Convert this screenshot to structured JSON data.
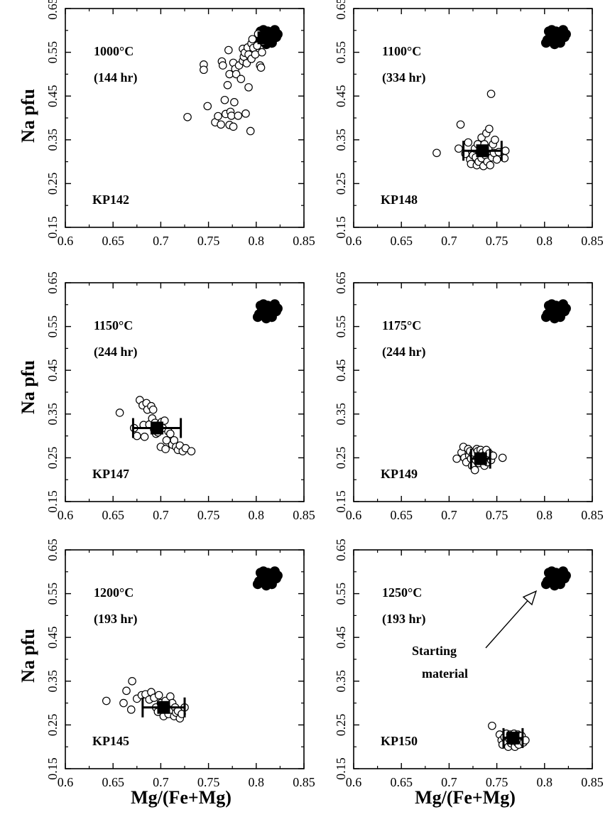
{
  "figure": {
    "ylabel": "Na pfu",
    "xlabel": "Mg/(Fe+Mg)"
  },
  "chart_data": [
    {
      "type": "scatter",
      "temperature": "1000°C",
      "duration": "(144 hr)",
      "sample": "KP142",
      "xlim": [
        0.6,
        0.85
      ],
      "ylim": [
        0.15,
        0.65
      ],
      "x_ticks": [
        "0.6",
        "0.65",
        "0.7",
        "0.75",
        "0.8",
        "0.85"
      ],
      "y_ticks": [
        "0.15",
        "0.25",
        "0.35",
        "0.45",
        "0.55",
        "0.65"
      ],
      "starting_material": {
        "x": 0.812,
        "y": 0.588
      },
      "mean": {
        "x": 0.808,
        "y": 0.583,
        "xerr": 0.0
      },
      "points": [
        [
          0.728,
          0.402
        ],
        [
          0.745,
          0.522
        ],
        [
          0.745,
          0.51
        ],
        [
          0.749,
          0.427
        ],
        [
          0.757,
          0.39
        ],
        [
          0.76,
          0.404
        ],
        [
          0.763,
          0.385
        ],
        [
          0.764,
          0.529
        ],
        [
          0.765,
          0.52
        ],
        [
          0.767,
          0.441
        ],
        [
          0.768,
          0.409
        ],
        [
          0.77,
          0.475
        ],
        [
          0.771,
          0.555
        ],
        [
          0.772,
          0.5
        ],
        [
          0.772,
          0.384
        ],
        [
          0.773,
          0.414
        ],
        [
          0.774,
          0.405
        ],
        [
          0.776,
          0.38
        ],
        [
          0.776,
          0.526
        ],
        [
          0.777,
          0.436
        ],
        [
          0.778,
          0.512
        ],
        [
          0.779,
          0.5
        ],
        [
          0.781,
          0.405
        ],
        [
          0.782,
          0.52
        ],
        [
          0.784,
          0.489
        ],
        [
          0.786,
          0.53
        ],
        [
          0.786,
          0.558
        ],
        [
          0.787,
          0.54
        ],
        [
          0.788,
          0.549
        ],
        [
          0.789,
          0.41
        ],
        [
          0.79,
          0.525
        ],
        [
          0.791,
          0.561
        ],
        [
          0.792,
          0.545
        ],
        [
          0.792,
          0.47
        ],
        [
          0.794,
          0.37
        ],
        [
          0.795,
          0.57
        ],
        [
          0.795,
          0.535
        ],
        [
          0.796,
          0.58
        ],
        [
          0.797,
          0.56
        ],
        [
          0.799,
          0.545
        ],
        [
          0.801,
          0.565
        ],
        [
          0.802,
          0.592
        ],
        [
          0.804,
          0.52
        ],
        [
          0.805,
          0.515
        ],
        [
          0.806,
          0.55
        ],
        [
          0.807,
          0.575
        ],
        [
          0.808,
          0.585
        ]
      ]
    },
    {
      "type": "scatter",
      "temperature": "1100°C",
      "duration": "(334 hr)",
      "sample": "KP148",
      "xlim": [
        0.6,
        0.85
      ],
      "ylim": [
        0.15,
        0.65
      ],
      "x_ticks": [
        "0.6",
        "0.65",
        "0.7",
        "0.75",
        "0.8",
        "0.85"
      ],
      "y_ticks": [
        "0.15",
        "0.25",
        "0.35",
        "0.45",
        "0.55",
        "0.65"
      ],
      "starting_material": {
        "x": 0.812,
        "y": 0.588
      },
      "mean": {
        "x": 0.735,
        "y": 0.325,
        "xerr": 0.02,
        "yerr": 0.02
      },
      "points": [
        [
          0.687,
          0.32
        ],
        [
          0.71,
          0.33
        ],
        [
          0.712,
          0.385
        ],
        [
          0.717,
          0.318
        ],
        [
          0.72,
          0.344
        ],
        [
          0.722,
          0.305
        ],
        [
          0.723,
          0.295
        ],
        [
          0.725,
          0.315
        ],
        [
          0.727,
          0.33
        ],
        [
          0.728,
          0.31
        ],
        [
          0.729,
          0.292
        ],
        [
          0.73,
          0.34
        ],
        [
          0.731,
          0.3
        ],
        [
          0.733,
          0.32
        ],
        [
          0.734,
          0.308
        ],
        [
          0.734,
          0.355
        ],
        [
          0.736,
          0.29
        ],
        [
          0.737,
          0.34
        ],
        [
          0.738,
          0.315
        ],
        [
          0.739,
          0.365
        ],
        [
          0.74,
          0.3
        ],
        [
          0.741,
          0.33
        ],
        [
          0.742,
          0.375
        ],
        [
          0.743,
          0.292
        ],
        [
          0.744,
          0.455
        ],
        [
          0.745,
          0.31
        ],
        [
          0.746,
          0.34
        ],
        [
          0.747,
          0.32
        ],
        [
          0.748,
          0.35
        ],
        [
          0.75,
          0.305
        ],
        [
          0.752,
          0.322
        ],
        [
          0.758,
          0.308
        ],
        [
          0.759,
          0.325
        ]
      ]
    },
    {
      "type": "scatter",
      "temperature": "1150°C",
      "duration": "(244 hr)",
      "sample": "KP147",
      "xlim": [
        0.6,
        0.85
      ],
      "ylim": [
        0.15,
        0.65
      ],
      "x_ticks": [
        "0.6",
        "0.65",
        "0.7",
        "0.75",
        "0.8",
        "0.85"
      ],
      "y_ticks": [
        "0.15",
        "0.25",
        "0.35",
        "0.45",
        "0.55",
        "0.65"
      ],
      "starting_material": {
        "x": 0.812,
        "y": 0.588
      },
      "mean": {
        "x": 0.696,
        "y": 0.318,
        "xerr": 0.025,
        "yerr": 0.02
      },
      "points": [
        [
          0.657,
          0.353
        ],
        [
          0.672,
          0.318
        ],
        [
          0.675,
          0.3
        ],
        [
          0.678,
          0.382
        ],
        [
          0.681,
          0.37
        ],
        [
          0.682,
          0.325
        ],
        [
          0.683,
          0.298
        ],
        [
          0.685,
          0.375
        ],
        [
          0.686,
          0.36
        ],
        [
          0.688,
          0.326
        ],
        [
          0.69,
          0.368
        ],
        [
          0.691,
          0.34
        ],
        [
          0.692,
          0.36
        ],
        [
          0.693,
          0.315
        ],
        [
          0.694,
          0.33
        ],
        [
          0.695,
          0.305
        ],
        [
          0.697,
          0.308
        ],
        [
          0.698,
          0.325
        ],
        [
          0.7,
          0.275
        ],
        [
          0.701,
          0.332
        ],
        [
          0.702,
          0.318
        ],
        [
          0.704,
          0.335
        ],
        [
          0.705,
          0.27
        ],
        [
          0.706,
          0.29
        ],
        [
          0.708,
          0.31
        ],
        [
          0.71,
          0.305
        ],
        [
          0.712,
          0.28
        ],
        [
          0.714,
          0.29
        ],
        [
          0.716,
          0.275
        ],
        [
          0.718,
          0.268
        ],
        [
          0.72,
          0.278
        ],
        [
          0.723,
          0.265
        ],
        [
          0.726,
          0.272
        ],
        [
          0.732,
          0.265
        ]
      ]
    },
    {
      "type": "scatter",
      "temperature": "1175°C",
      "duration": "(244 hr)",
      "sample": "KP149",
      "xlim": [
        0.6,
        0.85
      ],
      "ylim": [
        0.15,
        0.65
      ],
      "x_ticks": [
        "0.6",
        "0.65",
        "0.7",
        "0.75",
        "0.8",
        "0.85"
      ],
      "y_ticks": [
        "0.15",
        "0.25",
        "0.35",
        "0.45",
        "0.55",
        "0.65"
      ],
      "starting_material": {
        "x": 0.812,
        "y": 0.588
      },
      "mean": {
        "x": 0.733,
        "y": 0.248,
        "xerr": 0.01,
        "yerr": 0.025
      },
      "points": [
        [
          0.708,
          0.248
        ],
        [
          0.713,
          0.262
        ],
        [
          0.715,
          0.275
        ],
        [
          0.716,
          0.25
        ],
        [
          0.718,
          0.24
        ],
        [
          0.72,
          0.27
        ],
        [
          0.721,
          0.255
        ],
        [
          0.722,
          0.265
        ],
        [
          0.723,
          0.248
        ],
        [
          0.724,
          0.232
        ],
        [
          0.725,
          0.258
        ],
        [
          0.726,
          0.262
        ],
        [
          0.727,
          0.222
        ],
        [
          0.728,
          0.245
        ],
        [
          0.729,
          0.27
        ],
        [
          0.73,
          0.265
        ],
        [
          0.731,
          0.238
        ],
        [
          0.732,
          0.255
        ],
        [
          0.733,
          0.268
        ],
        [
          0.734,
          0.242
        ],
        [
          0.735,
          0.262
        ],
        [
          0.736,
          0.248
        ],
        [
          0.737,
          0.232
        ],
        [
          0.738,
          0.258
        ],
        [
          0.739,
          0.268
        ],
        [
          0.74,
          0.24
        ],
        [
          0.741,
          0.252
        ],
        [
          0.742,
          0.26
        ],
        [
          0.744,
          0.245
        ],
        [
          0.746,
          0.255
        ],
        [
          0.756,
          0.25
        ]
      ]
    },
    {
      "type": "scatter",
      "temperature": "1200°C",
      "duration": "(193 hr)",
      "sample": "KP145",
      "xlim": [
        0.6,
        0.85
      ],
      "ylim": [
        0.15,
        0.65
      ],
      "x_ticks": [
        "0.6",
        "0.65",
        "0.7",
        "0.75",
        "0.8",
        "0.85"
      ],
      "y_ticks": [
        "0.15",
        "0.25",
        "0.35",
        "0.45",
        "0.55",
        "0.65"
      ],
      "starting_material": {
        "x": 0.812,
        "y": 0.588
      },
      "mean": {
        "x": 0.703,
        "y": 0.29,
        "xerr": 0.022,
        "yerr": 0.022
      },
      "points": [
        [
          0.643,
          0.305
        ],
        [
          0.661,
          0.3
        ],
        [
          0.664,
          0.328
        ],
        [
          0.669,
          0.285
        ],
        [
          0.67,
          0.35
        ],
        [
          0.675,
          0.31
        ],
        [
          0.68,
          0.318
        ],
        [
          0.684,
          0.32
        ],
        [
          0.688,
          0.308
        ],
        [
          0.69,
          0.325
        ],
        [
          0.693,
          0.312
        ],
        [
          0.695,
          0.29
        ],
        [
          0.697,
          0.28
        ],
        [
          0.698,
          0.318
        ],
        [
          0.7,
          0.3
        ],
        [
          0.702,
          0.285
        ],
        [
          0.703,
          0.27
        ],
        [
          0.705,
          0.305
        ],
        [
          0.706,
          0.295
        ],
        [
          0.708,
          0.275
        ],
        [
          0.71,
          0.315
        ],
        [
          0.711,
          0.285
        ],
        [
          0.712,
          0.3
        ],
        [
          0.714,
          0.27
        ],
        [
          0.715,
          0.29
        ],
        [
          0.716,
          0.278
        ],
        [
          0.718,
          0.282
        ],
        [
          0.72,
          0.265
        ],
        [
          0.722,
          0.275
        ],
        [
          0.725,
          0.29
        ]
      ]
    },
    {
      "type": "scatter",
      "temperature": "1250°C",
      "duration": "(193 hr)",
      "sample": "KP150",
      "annotation": "Starting material",
      "xlim": [
        0.6,
        0.85
      ],
      "ylim": [
        0.15,
        0.65
      ],
      "x_ticks": [
        "0.6",
        "0.65",
        "0.7",
        "0.75",
        "0.8",
        "0.85"
      ],
      "y_ticks": [
        "0.15",
        "0.25",
        "0.35",
        "0.45",
        "0.55",
        "0.65"
      ],
      "starting_material": {
        "x": 0.812,
        "y": 0.588
      },
      "mean": {
        "x": 0.767,
        "y": 0.22,
        "xerr": 0.01,
        "yerr": 0.025
      },
      "points": [
        [
          0.745,
          0.248
        ],
        [
          0.753,
          0.228
        ],
        [
          0.755,
          0.215
        ],
        [
          0.756,
          0.205
        ],
        [
          0.758,
          0.222
        ],
        [
          0.76,
          0.23
        ],
        [
          0.761,
          0.21
        ],
        [
          0.762,
          0.2
        ],
        [
          0.763,
          0.218
        ],
        [
          0.764,
          0.228
        ],
        [
          0.765,
          0.208
        ],
        [
          0.766,
          0.222
        ],
        [
          0.767,
          0.212
        ],
        [
          0.768,
          0.23
        ],
        [
          0.769,
          0.2
        ],
        [
          0.77,
          0.22
        ],
        [
          0.771,
          0.21
        ],
        [
          0.772,
          0.228
        ],
        [
          0.773,
          0.205
        ],
        [
          0.774,
          0.218
        ],
        [
          0.776,
          0.225
        ],
        [
          0.778,
          0.21
        ],
        [
          0.78,
          0.215
        ]
      ]
    }
  ]
}
